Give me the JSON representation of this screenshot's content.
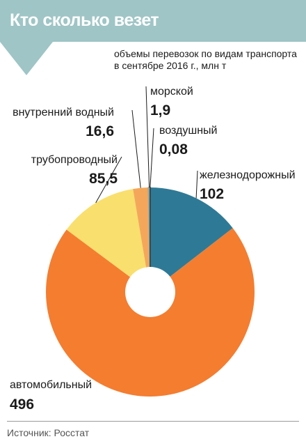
{
  "header": {
    "title": "Кто сколько везет",
    "subtitle_line1": "объемы перевозок по видам транспорта",
    "subtitle_line2": "в сентябре 2016 г., млн т"
  },
  "footer": {
    "source": "Источник: Росстат"
  },
  "colors": {
    "banner": "#9fc5c6",
    "railway": "#2e7a96",
    "auto": "#f47d30",
    "pipeline": "#f9df6d",
    "inland_water": "#f4a75a",
    "sea": "#9aa39a",
    "air": "#1d3c46",
    "hole": "#ffffff",
    "leader": "#1a1a1a"
  },
  "chart_data": {
    "type": "pie",
    "title": "",
    "donut": true,
    "start_angle_deg": 0,
    "direction": "clockwise",
    "slices": [
      {
        "key": "railway",
        "name": "железнодорожный",
        "value": 102,
        "label": "102"
      },
      {
        "key": "auto",
        "name": "автомобильный",
        "value": 496,
        "label": "496"
      },
      {
        "key": "pipeline",
        "name": "трубопроводный",
        "value": 85.5,
        "label": "85,5"
      },
      {
        "key": "inland_water",
        "name": "внутренний водный",
        "value": 16.6,
        "label": "16,6"
      },
      {
        "key": "sea",
        "name": "морской",
        "value": 1.9,
        "label": "1,9"
      },
      {
        "key": "air",
        "name": "воздушный",
        "value": 0.08,
        "label": "0,08"
      }
    ]
  }
}
